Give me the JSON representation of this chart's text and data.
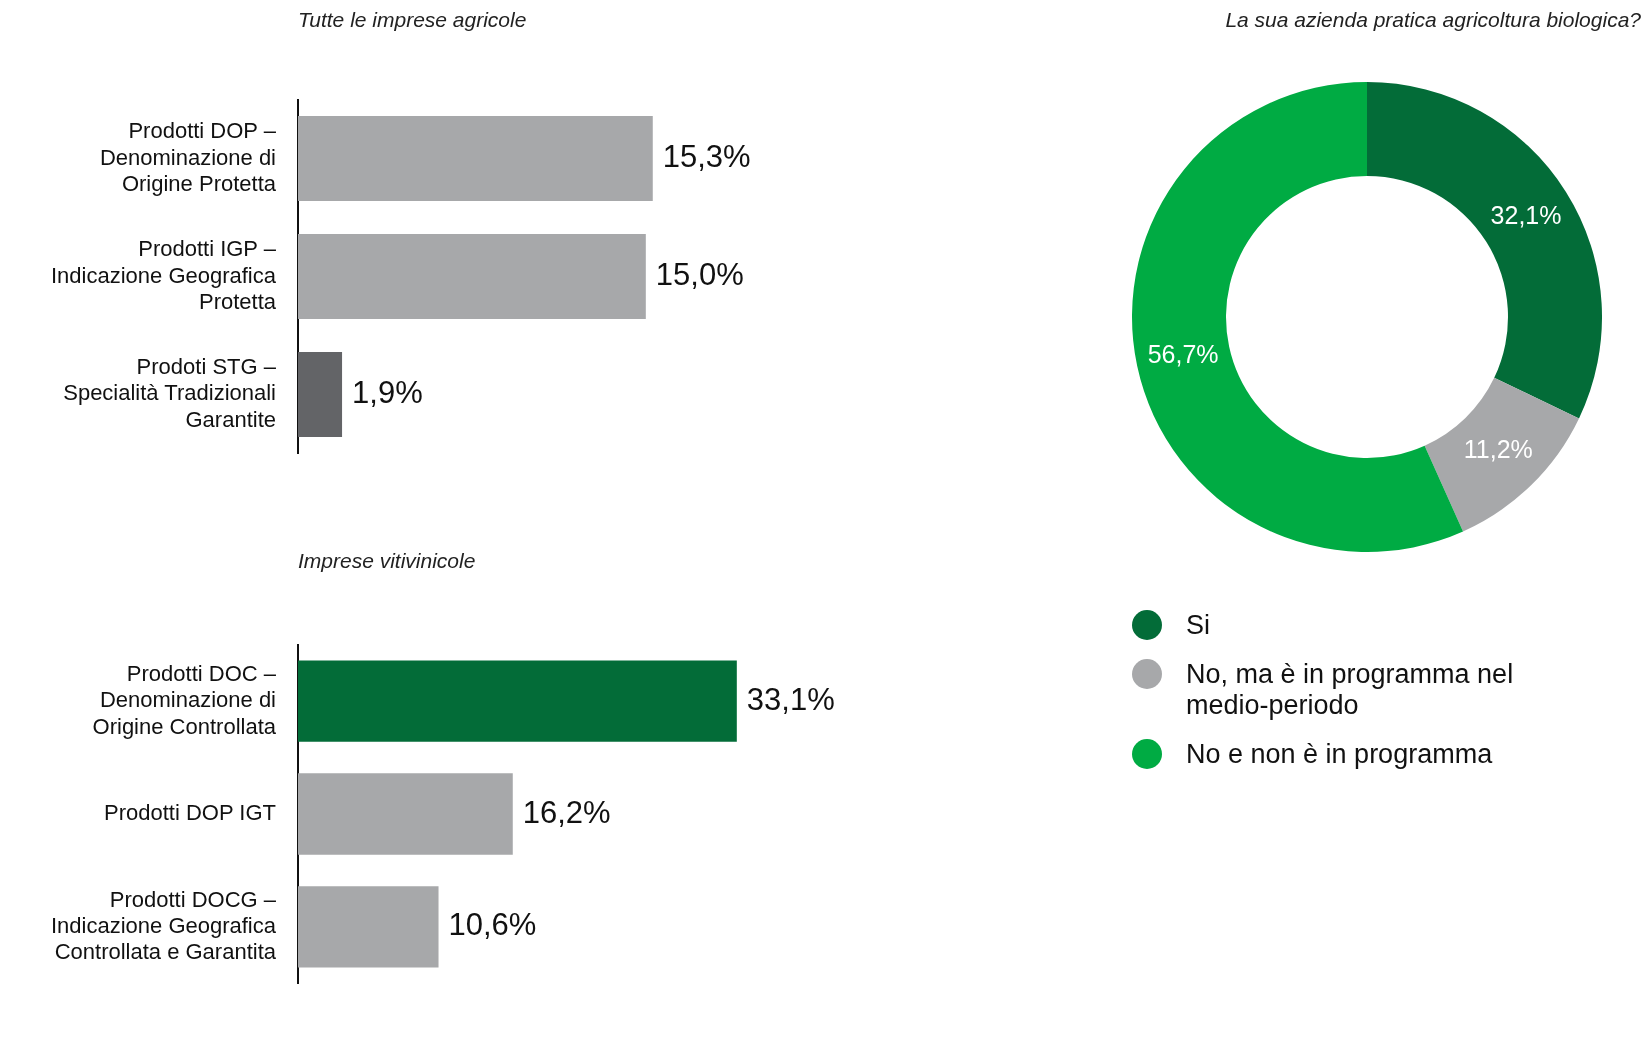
{
  "chart_data": [
    {
      "type": "bar",
      "orientation": "horizontal",
      "title": "Tutte le imprese agricole",
      "categories": [
        "Prodotti DOP – Denominazione di Origine Protetta",
        "Prodotti IGP – Indicazione Geografica Protetta",
        "Prodoti STG – Specialità Tradizionali Garantite"
      ],
      "values": [
        15.3,
        15.0,
        1.9
      ],
      "colors": [
        "#a7a8aa",
        "#a7a8aa",
        "#636467"
      ],
      "value_labels": [
        "15,3%",
        "15,0%",
        "1,9%"
      ],
      "tick_labels": "y"
    },
    {
      "type": "bar",
      "orientation": "horizontal",
      "title": "Imprese vitivinicole",
      "categories": [
        "Prodotti DOC – Denominazione di Origine Controllata",
        "Prodotti DOP IGT",
        "Prodotti DOCG – Indicazione Geografica Controllata e Garantita"
      ],
      "values": [
        33.1,
        16.2,
        10.6
      ],
      "colors": [
        "#036c38",
        "#a7a8aa",
        "#a7a8aa"
      ],
      "value_labels": [
        "33,1%",
        "16,2%",
        "10,6%"
      ],
      "tick_labels": "y"
    },
    {
      "type": "donut",
      "title": "La sua azienda pratica agricoltura biologica?",
      "categories": [
        "Si",
        "No, ma è in programma nel medio-periodo",
        "No e non è in programma"
      ],
      "values": [
        32.1,
        11.2,
        56.7
      ],
      "colors": [
        "#036c38",
        "#a7a8aa",
        "#00ab43"
      ],
      "value_labels": [
        "32,1%",
        "11,2%",
        "56,7%"
      ],
      "legend": "bottom"
    }
  ]
}
